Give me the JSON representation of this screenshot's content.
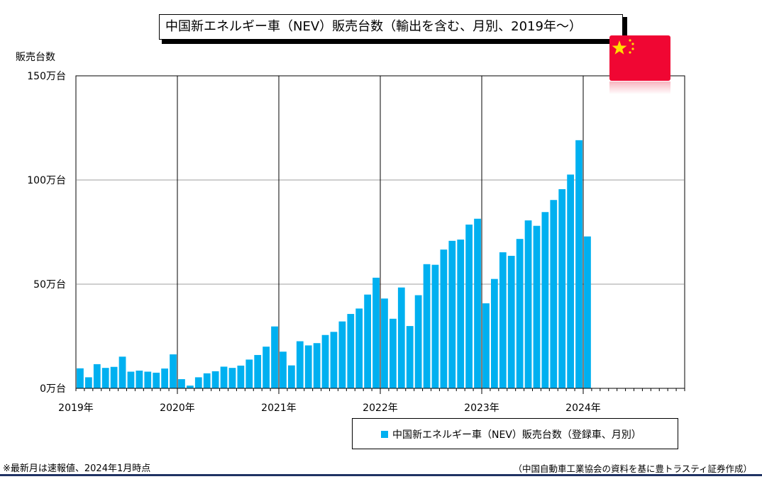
{
  "chart_data": {
    "type": "bar",
    "title": "中国新エネルギー車（NEV）販売台数（輸出を含む、月別、2019年～）",
    "ylabel": "販売台数",
    "ylim": [
      0,
      150
    ],
    "yticks": [
      "0万台",
      "50万台",
      "100万台",
      "150万台"
    ],
    "ytick_values": [
      0,
      50,
      100,
      150
    ],
    "year_labels": [
      "2019年",
      "2020年",
      "2021年",
      "2022年",
      "2023年",
      "2024年"
    ],
    "grid": "horizontal + yearly vertical lines",
    "legend_position": "bottom-right",
    "months_on_axis": 72,
    "series": [
      {
        "name": "中国新エネルギー車（NEV）販売台数（登録車、月別）",
        "color": "#00b0f0",
        "values": [
          9.6,
          5.3,
          11.6,
          9.8,
          10.3,
          15.2,
          8.0,
          8.5,
          8.0,
          7.5,
          9.5,
          16.3,
          4.4,
          1.3,
          5.3,
          7.2,
          8.2,
          10.4,
          9.8,
          10.9,
          13.8,
          16.0,
          20.0,
          29.7,
          17.6,
          11.0,
          22.6,
          20.6,
          21.7,
          25.6,
          27.1,
          32.1,
          35.7,
          38.3,
          45.0,
          53.1,
          43.1,
          33.4,
          48.4,
          29.9,
          44.7,
          59.6,
          59.3,
          66.6,
          70.8,
          71.4,
          78.6,
          81.4,
          40.8,
          52.5,
          65.3,
          63.6,
          71.7,
          80.6,
          78.0,
          84.6,
          90.4,
          95.6,
          102.6,
          119.1,
          72.9
        ]
      }
    ]
  },
  "notes": {
    "left": "※最新月は速報値、2024年1月時点",
    "right": "（中国自動車工業協会の資料を基に豊トラスティ証券作成）"
  }
}
